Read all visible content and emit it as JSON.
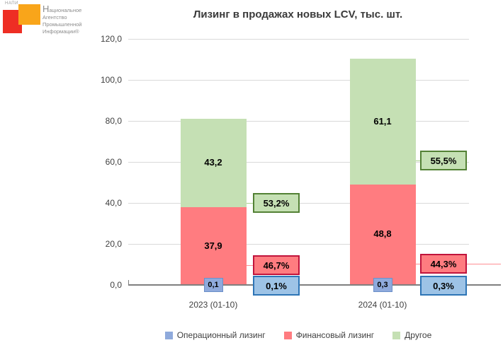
{
  "logo": {
    "acronym": "НАПИ",
    "org_lines": [
      "Национальное",
      "Агентство",
      "Промышленной",
      "Информации®"
    ],
    "red_color": "#ee2e24",
    "orange_color": "#f9a51a"
  },
  "chart_data": {
    "type": "bar",
    "stacked": true,
    "title": "Лизинг в продажах новых LCV, тыс. шт.",
    "categories": [
      "2023 (01-10)",
      "2024 (01-10)"
    ],
    "series": [
      {
        "name": "Операционный лизинг",
        "color": "#8faadc",
        "border_color": "#2e75b6",
        "callout_fill": "#9dc3e6",
        "connector_color": "#7f7f7f",
        "values": [
          0.1,
          0.3
        ],
        "value_labels": [
          "0,1",
          "0,3"
        ],
        "share_labels": [
          "0,1%",
          "0,3%"
        ]
      },
      {
        "name": "Финансовый лизинг",
        "color": "#ff7c80",
        "border_color": "#c0143c",
        "callout_fill": "#ff7c80",
        "connector_color": "#ff8f93",
        "values": [
          37.9,
          48.8
        ],
        "value_labels": [
          "37,9",
          "48,8"
        ],
        "share_labels": [
          "46,7%",
          "44,3%"
        ]
      },
      {
        "name": "Другое",
        "color": "#c5e0b4",
        "border_color": "#538135",
        "callout_fill": "#c5e0b4",
        "connector_color": "#a9d08e",
        "values": [
          43.2,
          61.1
        ],
        "value_labels": [
          "43,2",
          "61,1"
        ],
        "share_labels": [
          "53,2%",
          "55,5%"
        ]
      }
    ],
    "y_ticks": [
      "120,0",
      "100,0",
      "80,0",
      "60,0",
      "40,0",
      "20,0",
      "0,0"
    ],
    "ylim": [
      0,
      120
    ],
    "grid": true,
    "legend_position": "bottom"
  }
}
